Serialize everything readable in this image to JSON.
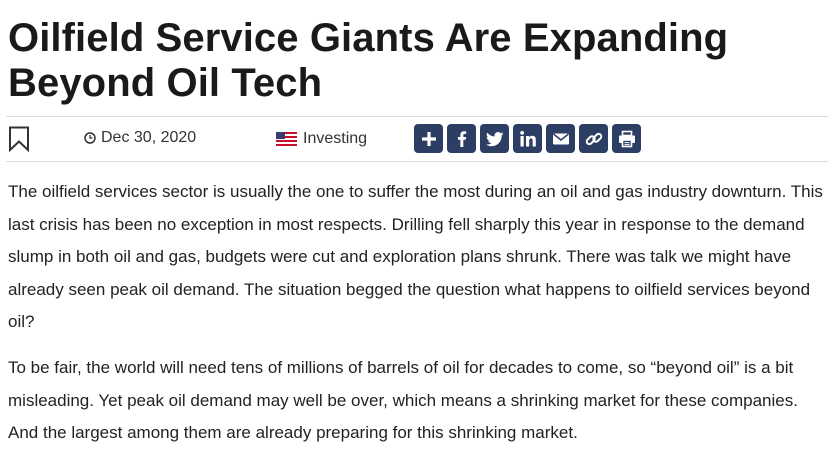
{
  "article": {
    "headline_line1": "Oilfield Service Giants Are Expanding",
    "headline_line2": "Beyond Oil Tech",
    "date": "Dec 30, 2020",
    "source": "Investing",
    "paragraphs": [
      "The oilfield services sector is usually the one to suffer the most during an oil and gas industry downturn. This last crisis has been no exception in most respects. Drilling fell sharply this year in response to the demand slump in both oil and gas, budgets were cut and exploration plans shrunk. There was talk we might have already seen peak oil demand. The situation begged the question what happens to oilfield services beyond oil?",
      "To be fair, the world will need tens of millions of barrels of oil for decades to come, so “beyond oil” is a bit misleading. Yet peak oil demand may well be over, which means a shrinking market for these companies. And the largest among them are already preparing for this shrinking market."
    ]
  },
  "icons": {
    "bookmark": "bookmark-icon",
    "clock": "clock-icon",
    "flag": "us-flag-icon",
    "share": [
      "plus-icon",
      "facebook-icon",
      "twitter-icon",
      "linkedin-icon",
      "email-icon",
      "link-icon",
      "print-icon"
    ]
  },
  "colors": {
    "share_button_bg": "#2c3e63",
    "text": "#222222",
    "headline": "#1a1a1a",
    "divider": "#dcdcdc"
  }
}
